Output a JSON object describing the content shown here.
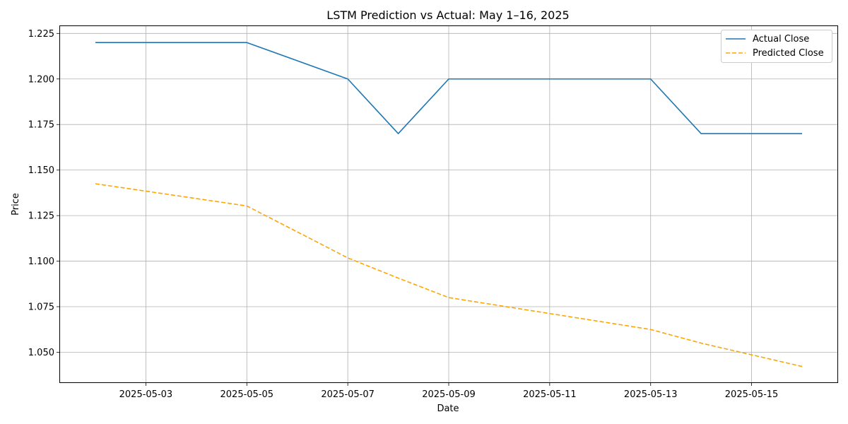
{
  "chart_data": {
    "type": "line",
    "title": "LSTM Prediction vs Actual: May 1–16, 2025",
    "xlabel": "Date",
    "ylabel": "Price",
    "x": [
      "2025-05-02",
      "2025-05-05",
      "2025-05-07",
      "2025-05-08",
      "2025-05-09",
      "2025-05-13",
      "2025-05-14",
      "2025-05-16"
    ],
    "xlim": [
      "2025-05-01T07:12:00",
      "2025-05-16T16:48:00"
    ],
    "ylim": [
      1.0335,
      1.229
    ],
    "x_ticks": [
      "2025-05-03",
      "2025-05-05",
      "2025-05-07",
      "2025-05-09",
      "2025-05-11",
      "2025-05-13",
      "2025-05-15"
    ],
    "y_ticks": [
      1.05,
      1.075,
      1.1,
      1.125,
      1.15,
      1.175,
      1.2,
      1.225
    ],
    "y_tick_labels": [
      "1.050",
      "1.075",
      "1.100",
      "1.125",
      "1.150",
      "1.175",
      "1.200",
      "1.225"
    ],
    "grid": true,
    "legend_position": "top-right",
    "series": [
      {
        "name": "Actual Close",
        "color": "#1f77b4",
        "dash": "solid",
        "values": [
          1.22,
          1.22,
          1.2,
          1.17,
          1.2,
          1.2,
          1.17,
          1.17
        ]
      },
      {
        "name": "Predicted Close",
        "color": "#ffa500",
        "dash": "dashed",
        "values": [
          1.1425,
          1.1303,
          1.1018,
          1.0907,
          1.08,
          1.0625,
          1.055,
          1.0422
        ]
      }
    ]
  }
}
